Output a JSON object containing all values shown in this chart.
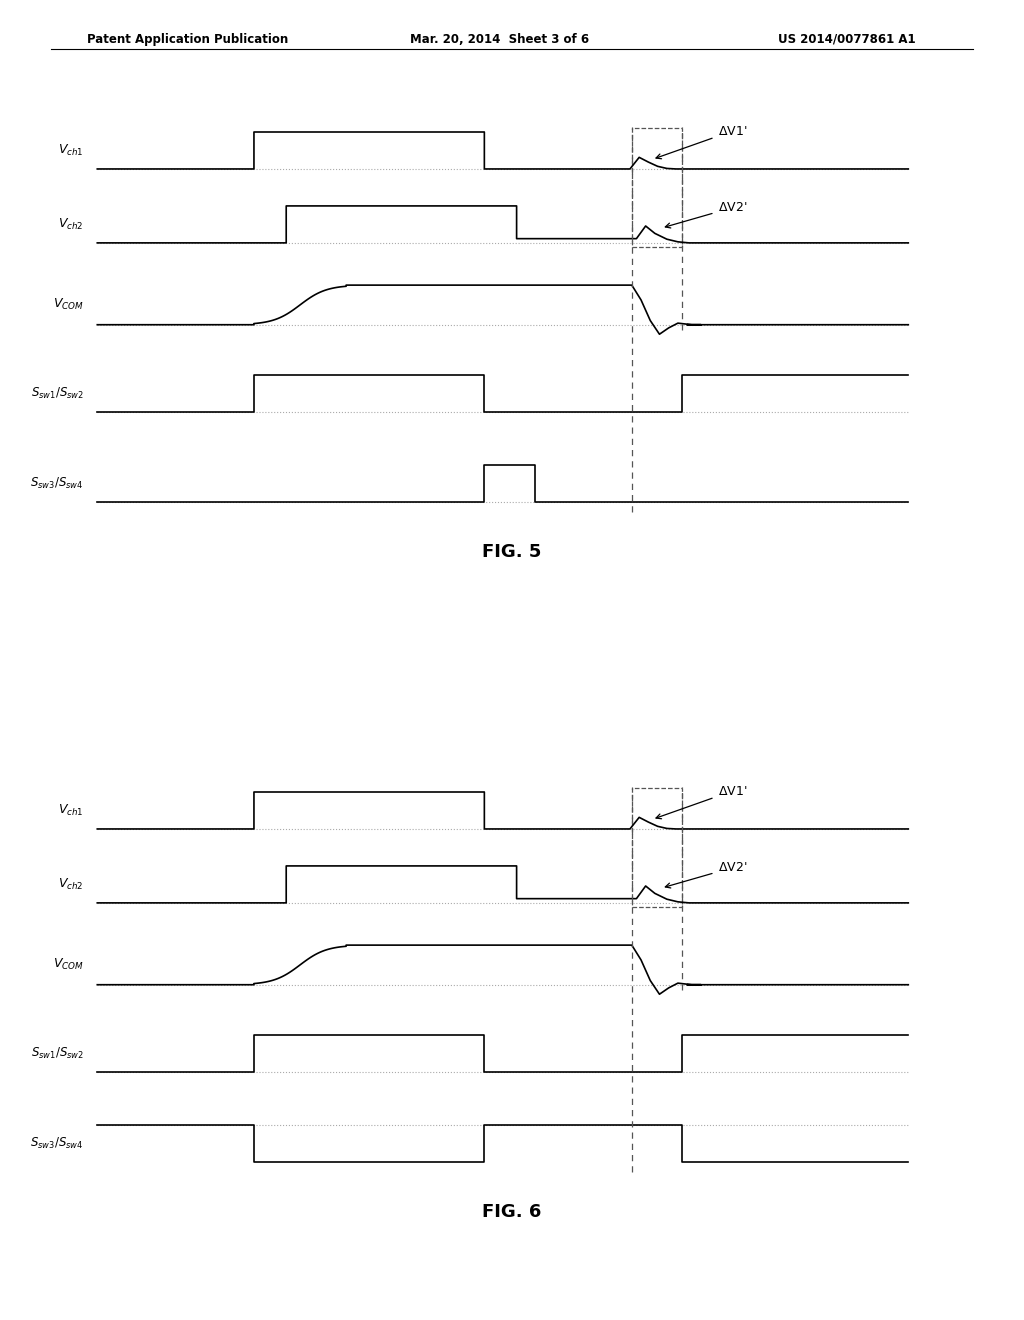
{
  "title_left": "Patent Application Publication",
  "title_mid": "Mar. 20, 2014  Sheet 3 of 6",
  "title_right": "US 2014/0077861 A1",
  "fig5_label": "FIG. 5",
  "fig6_label": "FIG. 6",
  "bg_color": "#ffffff",
  "line_color": "#000000",
  "line_width": 1.2,
  "dashed_line_color": "#aaaaaa",
  "dashed_box_color": "#555555"
}
